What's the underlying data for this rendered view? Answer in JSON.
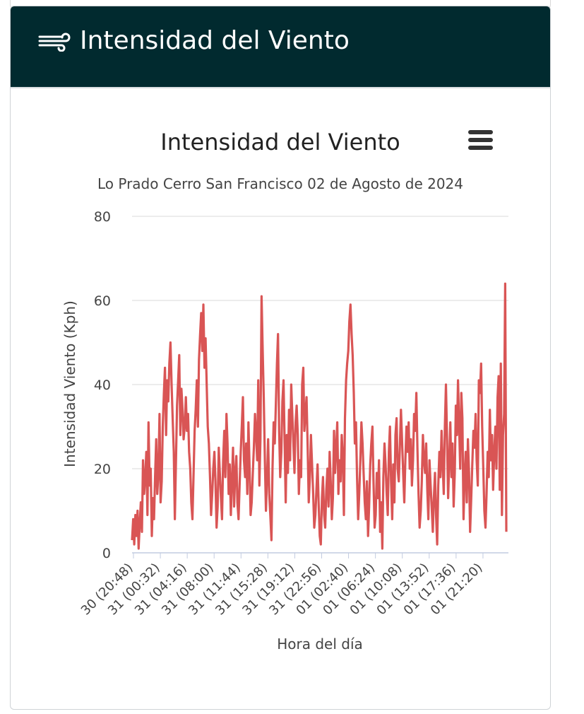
{
  "panel": {
    "header_title": "Intensidad del Viento",
    "header_color": "#012a2f",
    "header_icon": "wind-icon",
    "menu_icon": "hamburger-menu-icon"
  },
  "chart_data": {
    "type": "line",
    "title": "Intensidad del Viento",
    "subtitle": "Lo Prado Cerro San Francisco 02 de Agosto de 2024",
    "xlabel": "Hora del día",
    "ylabel": "Intensidad Viento (Kph)",
    "ylim": [
      0,
      80
    ],
    "yticks": [
      0,
      20,
      40,
      60,
      80
    ],
    "grid": true,
    "legend": "none",
    "series_color": "#d95555",
    "x_tick_labels": [
      "30 (20:48)",
      "31 (00:32)",
      "31 (04:16)",
      "31 (08:00)",
      "31 (11:44)",
      "31 (15:28)",
      "31 (19:12)",
      "31 (22:56)",
      "01 (02:40)",
      "01 (06:24)",
      "01 (10:08)",
      "01 (13:52)",
      "01 (17:36)",
      "01 (21:20)"
    ],
    "series": [
      {
        "values": [
          3,
          8,
          2,
          9,
          4,
          10,
          1,
          7,
          12,
          5,
          22,
          14,
          18,
          24,
          9,
          31,
          16,
          20,
          4,
          13,
          8,
          18,
          27,
          14,
          19,
          33,
          12,
          17,
          30,
          38,
          44,
          28,
          41,
          36,
          45,
          50,
          40,
          32,
          24,
          8,
          22,
          35,
          41,
          47,
          28,
          39,
          34,
          27,
          30,
          37,
          29,
          33,
          24,
          20,
          12,
          8,
          18,
          29,
          34,
          41,
          30,
          46,
          52,
          57,
          48,
          59,
          44,
          51,
          40,
          30,
          26,
          18,
          9,
          14,
          20,
          24,
          17,
          6,
          11,
          25,
          19,
          13,
          8,
          22,
          29,
          18,
          33,
          26,
          14,
          21,
          9,
          17,
          25,
          11,
          19,
          23,
          12,
          8,
          16,
          24,
          30,
          37,
          22,
          18,
          26,
          14,
          31,
          21,
          9,
          12,
          19,
          25,
          33,
          28,
          22,
          41,
          16,
          27,
          61,
          48,
          37,
          22,
          10,
          18,
          27,
          14,
          9,
          3,
          20,
          31,
          26,
          35,
          45,
          52,
          29,
          18,
          24,
          36,
          41,
          27,
          12,
          28,
          19,
          34,
          22,
          40,
          33,
          26,
          19,
          31,
          35,
          28,
          14,
          22,
          18,
          40,
          44,
          29,
          33,
          37,
          25,
          12,
          18,
          28,
          21,
          14,
          6,
          9,
          15,
          21,
          12,
          4,
          2,
          13,
          18,
          9,
          6,
          15,
          20,
          11,
          24,
          17,
          8,
          13,
          29,
          19,
          25,
          31,
          14,
          22,
          17,
          28,
          23,
          9,
          32,
          41,
          45,
          48,
          55,
          59,
          52,
          47,
          38,
          26,
          31,
          18,
          8,
          14,
          22,
          31,
          26,
          19,
          12,
          8,
          17,
          4,
          11,
          21,
          26,
          30,
          17,
          6,
          9,
          19,
          13,
          22,
          5,
          12,
          1,
          18,
          26,
          21,
          14,
          9,
          24,
          30,
          17,
          8,
          21,
          12,
          28,
          32,
          20,
          17,
          25,
          34,
          27,
          19,
          12,
          22,
          30,
          24,
          31,
          20,
          27,
          16,
          22,
          33,
          29,
          38,
          25,
          14,
          6,
          10,
          17,
          28,
          22,
          19,
          26,
          15,
          8,
          22,
          16,
          11,
          5,
          13,
          19,
          9,
          2,
          16,
          24,
          18,
          29,
          21,
          14,
          30,
          40,
          27,
          13,
          22,
          31,
          18,
          26,
          11,
          19,
          35,
          28,
          41,
          30,
          20,
          38,
          32,
          8,
          18,
          24,
          12,
          27,
          19,
          5,
          13,
          21,
          29,
          25,
          33,
          22,
          16,
          41,
          38,
          45,
          30,
          20,
          10,
          6,
          14,
          24,
          18,
          34,
          22,
          28,
          15,
          24,
          30,
          20,
          37,
          42,
          15,
          45,
          9,
          28,
          33,
          64,
          5
        ]
      }
    ]
  }
}
